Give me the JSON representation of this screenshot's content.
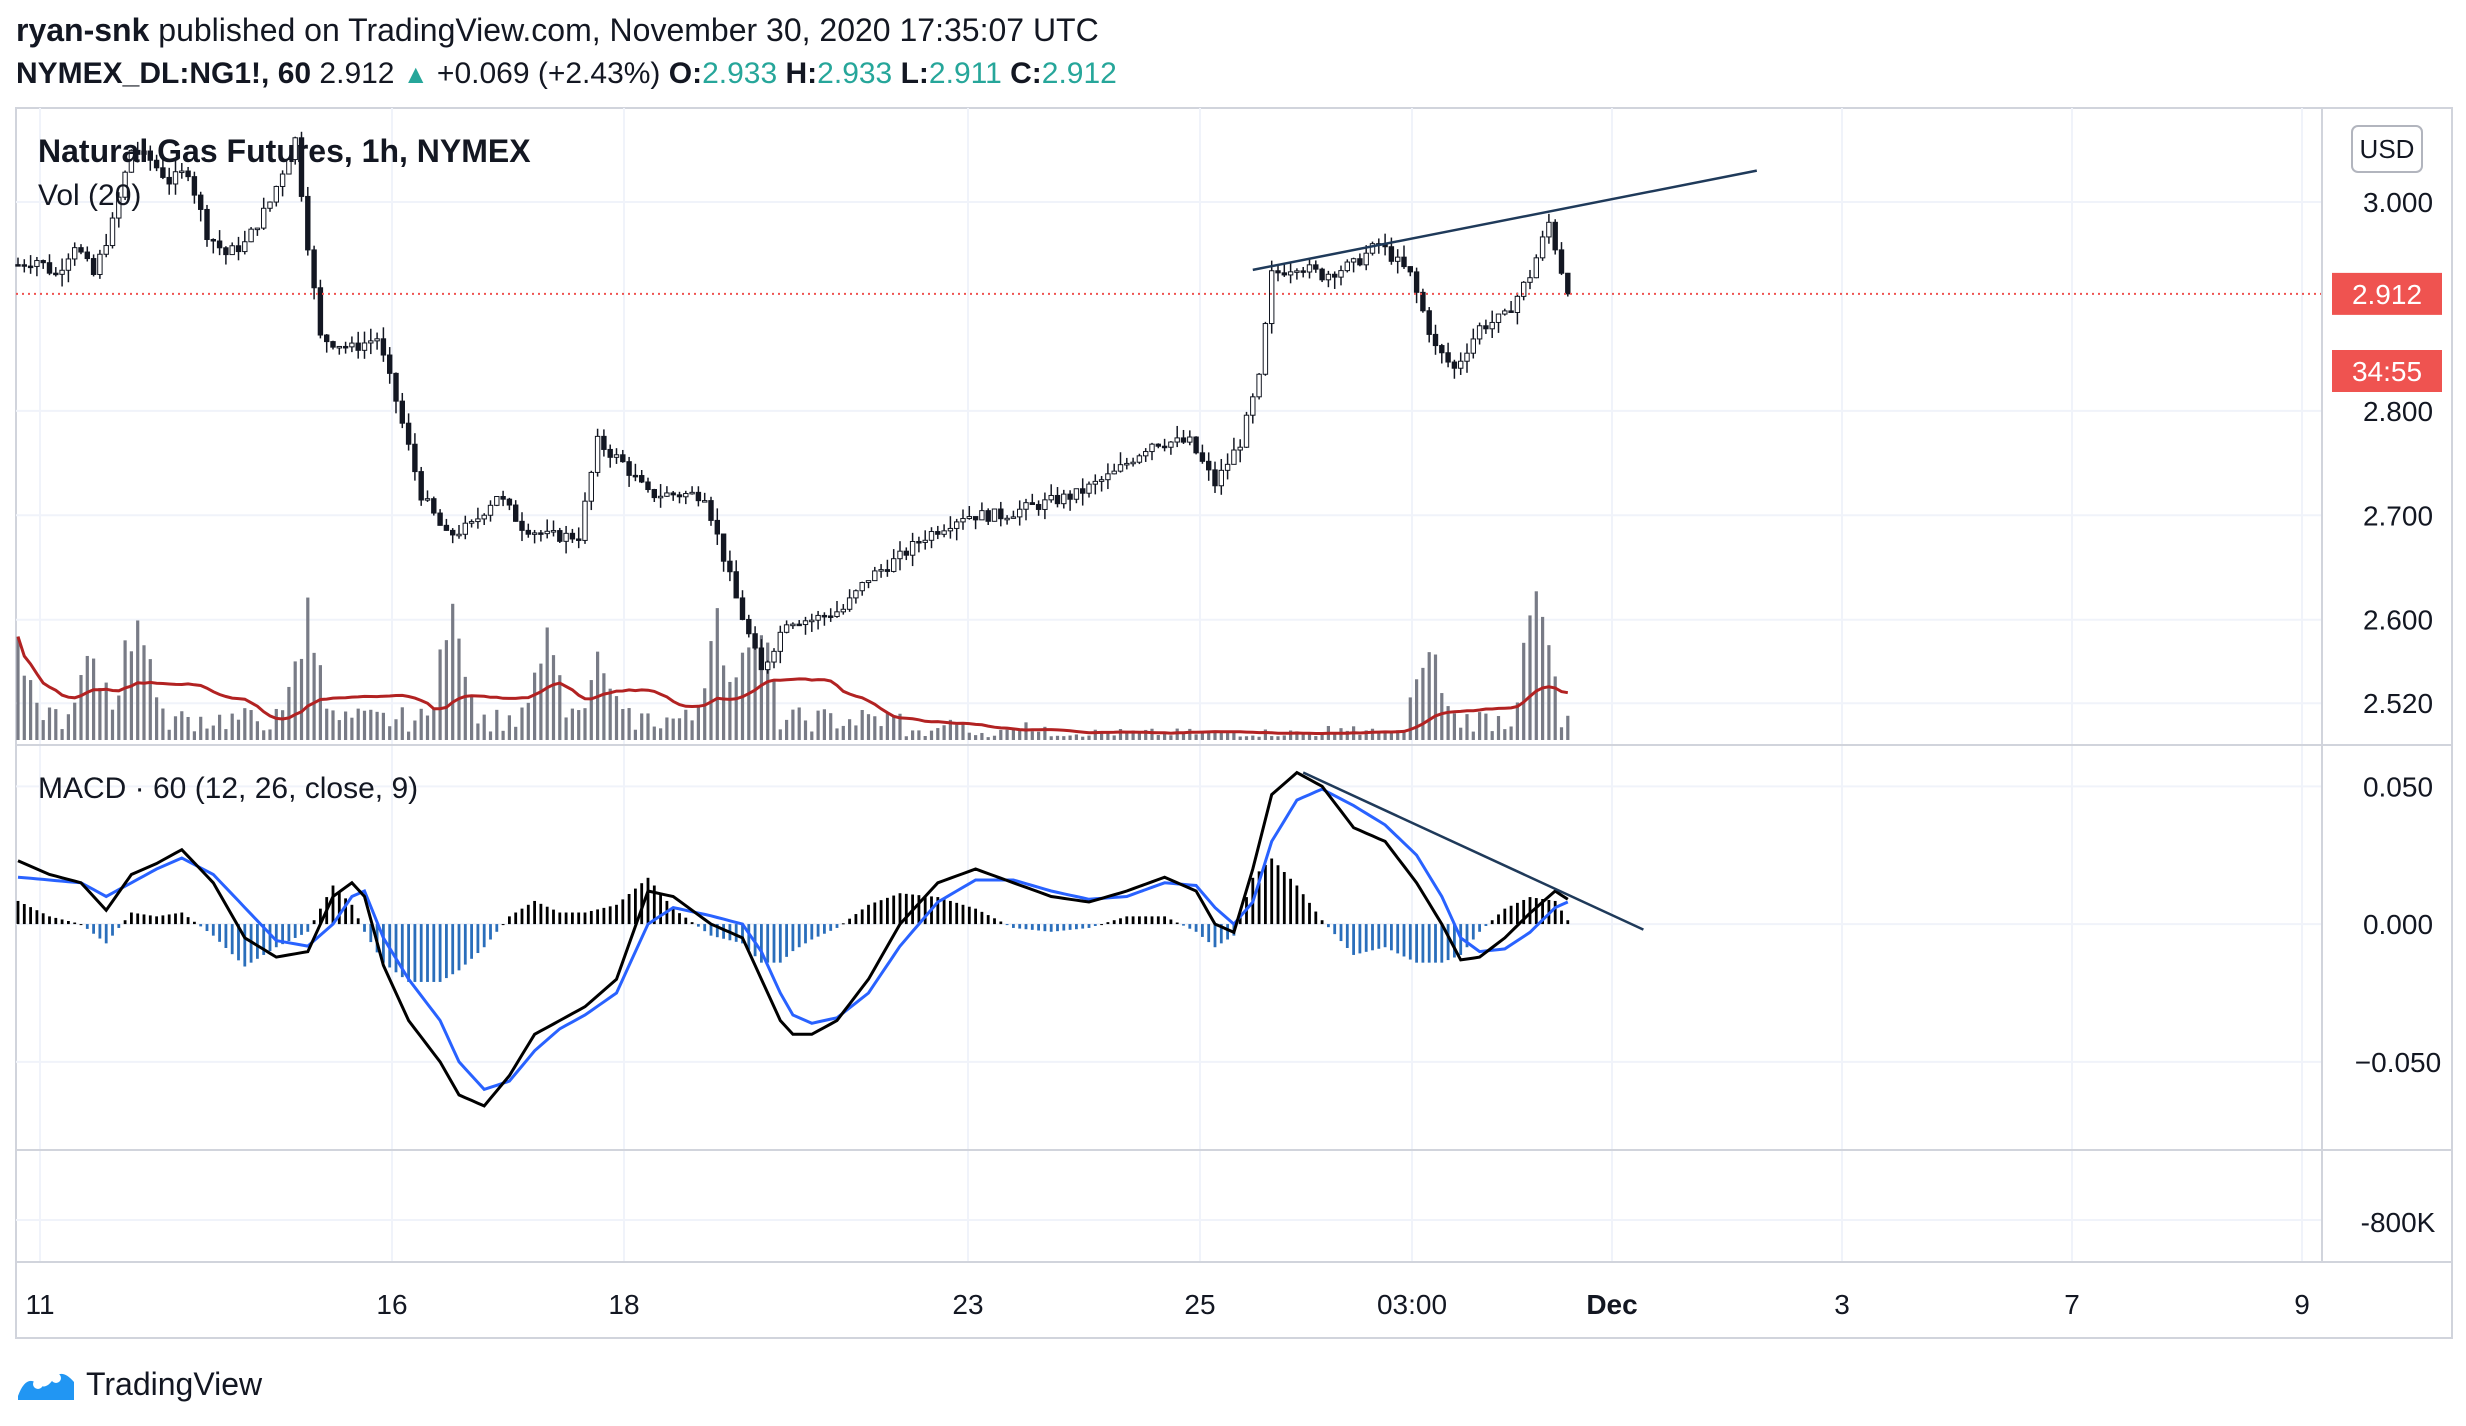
{
  "header": {
    "author": "ryan-snk",
    "published_text": "published on TradingView.com, November 30, 2020 17:35:07 UTC",
    "symbol_interval": "NYMEX_DL:NG1!, 60",
    "last": "2.912",
    "change": "+0.069 (+2.43%)",
    "open_label": "O:",
    "open": "2.933",
    "high_label": "H:",
    "high": "2.933",
    "low_label": "L:",
    "low": "2.911",
    "close_label": "C:",
    "close": "2.912"
  },
  "colors": {
    "up": "#26a69a",
    "candle": "#131722",
    "price_line": "#ef5350",
    "vol_bar": "#787b86",
    "vol_ma": "#b22222",
    "macd_line": "#000000",
    "signal_line": "#2962ff",
    "hist_pos": "#000000",
    "hist_neg": "#2a6ebb"
  },
  "brand": {
    "icon": "tradingview-logo-icon",
    "name": "TradingView"
  },
  "chart_data": [
    {
      "type": "candlestick",
      "title": "Natural Gas Futures, 1h, NYMEX",
      "currency": "USD",
      "x_tick_labels": [
        "11",
        "16",
        "18",
        "23",
        "25",
        "03:00",
        "Dec",
        "3",
        "7",
        "9"
      ],
      "y_tick_labels": [
        "3.000",
        "2.800",
        "2.700",
        "2.600",
        "2.520"
      ],
      "y_tick_values": [
        3.0,
        2.8,
        2.7,
        2.6,
        2.52
      ],
      "ylim": [
        2.48,
        3.09
      ],
      "last_price": 2.912,
      "last_price_label": "2.912",
      "countdown": "34:55",
      "close_path": [
        [
          0,
          2.94
        ],
        [
          3,
          2.945
        ],
        [
          6,
          2.93
        ],
        [
          9,
          2.96
        ],
        [
          12,
          2.93
        ],
        [
          15,
          2.98
        ],
        [
          18,
          3.05
        ],
        [
          21,
          3.04
        ],
        [
          24,
          3.02
        ],
        [
          27,
          3.03
        ],
        [
          30,
          2.97
        ],
        [
          33,
          2.95
        ],
        [
          36,
          2.96
        ],
        [
          40,
          3.0
        ],
        [
          44,
          3.06
        ],
        [
          46,
          2.96
        ],
        [
          48,
          2.87
        ],
        [
          53,
          2.86
        ],
        [
          57,
          2.87
        ],
        [
          60,
          2.81
        ],
        [
          64,
          2.72
        ],
        [
          68,
          2.68
        ],
        [
          72,
          2.69
        ],
        [
          76,
          2.72
        ],
        [
          80,
          2.69
        ],
        [
          84,
          2.68
        ],
        [
          89,
          2.68
        ],
        [
          92,
          2.77
        ],
        [
          96,
          2.75
        ],
        [
          100,
          2.72
        ],
        [
          105,
          2.72
        ],
        [
          109,
          2.72
        ],
        [
          114,
          2.62
        ],
        [
          118,
          2.55
        ],
        [
          122,
          2.6
        ],
        [
          126,
          2.6
        ],
        [
          131,
          2.61
        ],
        [
          135,
          2.64
        ],
        [
          140,
          2.66
        ],
        [
          144,
          2.68
        ],
        [
          150,
          2.7
        ],
        [
          156,
          2.7
        ],
        [
          162,
          2.71
        ],
        [
          168,
          2.72
        ],
        [
          174,
          2.74
        ],
        [
          180,
          2.77
        ],
        [
          186,
          2.77
        ],
        [
          190,
          2.73
        ],
        [
          194,
          2.77
        ],
        [
          197,
          2.83
        ],
        [
          199,
          2.93
        ],
        [
          203,
          2.94
        ],
        [
          207,
          2.93
        ],
        [
          212,
          2.94
        ],
        [
          216,
          2.96
        ],
        [
          221,
          2.93
        ],
        [
          225,
          2.86
        ],
        [
          228,
          2.84
        ],
        [
          232,
          2.88
        ],
        [
          236,
          2.89
        ],
        [
          240,
          2.93
        ],
        [
          243,
          2.98
        ],
        [
          246,
          2.912
        ]
      ],
      "trendline": [
        [
          196,
          2.935
        ],
        [
          276,
          3.03
        ]
      ]
    },
    {
      "type": "bar",
      "title": "Vol (20)",
      "series_names": [
        "volume",
        "ma20"
      ],
      "note": "volume overlaid in lower part of price pane; no numeric axis printed"
    },
    {
      "type": "line",
      "title": "MACD · 60 (12, 26, close, 9)",
      "y_tick_labels": [
        "0.050",
        "0.000",
        "−0.050"
      ],
      "y_tick_values": [
        0.05,
        0.0,
        -0.05
      ],
      "ylim": [
        -0.082,
        0.065
      ],
      "macd_path": [
        [
          0,
          0.023
        ],
        [
          5,
          0.018
        ],
        [
          10,
          0.015
        ],
        [
          14,
          0.005
        ],
        [
          18,
          0.018
        ],
        [
          22,
          0.022
        ],
        [
          26,
          0.027
        ],
        [
          31,
          0.015
        ],
        [
          36,
          -0.005
        ],
        [
          41,
          -0.012
        ],
        [
          46,
          -0.01
        ],
        [
          50,
          0.01
        ],
        [
          53,
          0.015
        ],
        [
          55,
          0.01
        ],
        [
          58,
          -0.015
        ],
        [
          62,
          -0.035
        ],
        [
          67,
          -0.05
        ],
        [
          70,
          -0.062
        ],
        [
          74,
          -0.066
        ],
        [
          78,
          -0.055
        ],
        [
          82,
          -0.04
        ],
        [
          86,
          -0.035
        ],
        [
          90,
          -0.03
        ],
        [
          95,
          -0.02
        ],
        [
          100,
          0.012
        ],
        [
          104,
          0.01
        ],
        [
          110,
          0.0
        ],
        [
          115,
          -0.005
        ],
        [
          118,
          -0.02
        ],
        [
          121,
          -0.035
        ],
        [
          123,
          -0.04
        ],
        [
          126,
          -0.04
        ],
        [
          130,
          -0.035
        ],
        [
          135,
          -0.02
        ],
        [
          140,
          0.0
        ],
        [
          146,
          0.015
        ],
        [
          152,
          0.02
        ],
        [
          158,
          0.015
        ],
        [
          164,
          0.01
        ],
        [
          170,
          0.008
        ],
        [
          176,
          0.012
        ],
        [
          182,
          0.017
        ],
        [
          187,
          0.012
        ],
        [
          190,
          0.0
        ],
        [
          193,
          -0.003
        ],
        [
          196,
          0.02
        ],
        [
          199,
          0.047
        ],
        [
          203,
          0.055
        ],
        [
          207,
          0.05
        ],
        [
          212,
          0.035
        ],
        [
          217,
          0.03
        ],
        [
          222,
          0.015
        ],
        [
          226,
          0.0
        ],
        [
          229,
          -0.013
        ],
        [
          232,
          -0.012
        ],
        [
          236,
          -0.005
        ],
        [
          240,
          0.004
        ],
        [
          244,
          0.012
        ],
        [
          246,
          0.009
        ]
      ],
      "signal_path": [
        [
          0,
          0.017
        ],
        [
          5,
          0.016
        ],
        [
          10,
          0.015
        ],
        [
          14,
          0.01
        ],
        [
          18,
          0.015
        ],
        [
          22,
          0.02
        ],
        [
          26,
          0.024
        ],
        [
          31,
          0.018
        ],
        [
          36,
          0.006
        ],
        [
          41,
          -0.006
        ],
        [
          46,
          -0.008
        ],
        [
          50,
          0.0
        ],
        [
          53,
          0.01
        ],
        [
          55,
          0.012
        ],
        [
          58,
          -0.005
        ],
        [
          62,
          -0.02
        ],
        [
          67,
          -0.035
        ],
        [
          70,
          -0.05
        ],
        [
          74,
          -0.06
        ],
        [
          78,
          -0.057
        ],
        [
          82,
          -0.046
        ],
        [
          86,
          -0.038
        ],
        [
          90,
          -0.033
        ],
        [
          95,
          -0.025
        ],
        [
          100,
          0.0
        ],
        [
          104,
          0.006
        ],
        [
          110,
          0.003
        ],
        [
          115,
          0.0
        ],
        [
          118,
          -0.01
        ],
        [
          121,
          -0.025
        ],
        [
          123,
          -0.033
        ],
        [
          126,
          -0.036
        ],
        [
          130,
          -0.034
        ],
        [
          135,
          -0.025
        ],
        [
          140,
          -0.008
        ],
        [
          146,
          0.008
        ],
        [
          152,
          0.016
        ],
        [
          158,
          0.016
        ],
        [
          164,
          0.012
        ],
        [
          170,
          0.009
        ],
        [
          176,
          0.01
        ],
        [
          182,
          0.015
        ],
        [
          187,
          0.014
        ],
        [
          190,
          0.006
        ],
        [
          193,
          0.0
        ],
        [
          196,
          0.008
        ],
        [
          199,
          0.03
        ],
        [
          203,
          0.045
        ],
        [
          207,
          0.049
        ],
        [
          212,
          0.043
        ],
        [
          217,
          0.036
        ],
        [
          222,
          0.025
        ],
        [
          226,
          0.01
        ],
        [
          229,
          -0.005
        ],
        [
          232,
          -0.01
        ],
        [
          236,
          -0.009
        ],
        [
          240,
          -0.003
        ],
        [
          244,
          0.006
        ],
        [
          246,
          0.008
        ]
      ],
      "trendline": [
        [
          204,
          0.055
        ],
        [
          258,
          -0.002
        ]
      ]
    },
    {
      "type": "line",
      "title": "",
      "y_tick_labels": [
        "-800K"
      ],
      "note": "empty lower pane"
    }
  ]
}
